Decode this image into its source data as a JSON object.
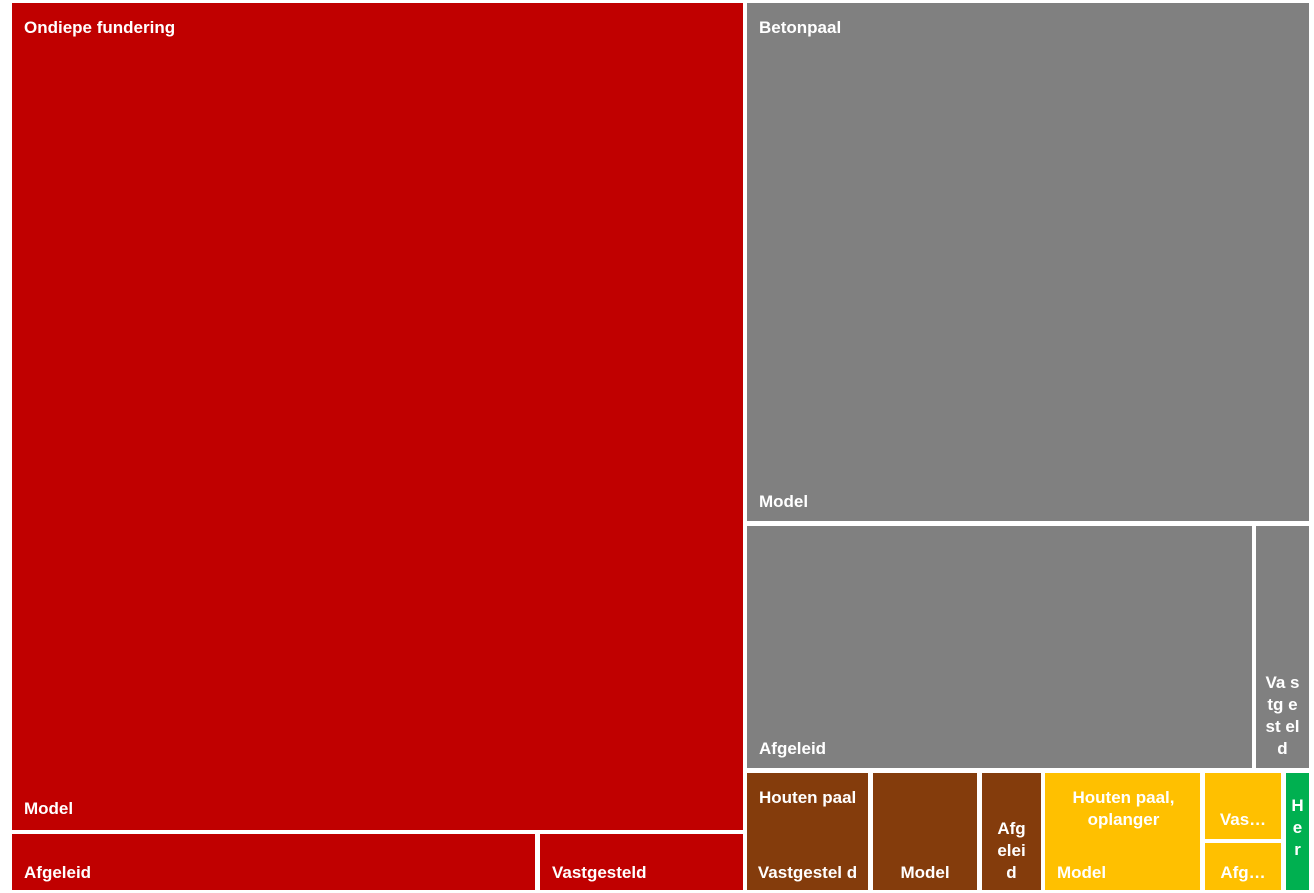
{
  "chart_data": {
    "type": "treemap",
    "colors": {
      "Ondiepe fundering": "#c00000",
      "Betonpaal": "#808080",
      "Houten paal": "#843c0c",
      "Houten paal, oplanger": "#ffc000",
      "Her": "#00b050"
    },
    "groups": [
      {
        "name": "Ondiepe fundering",
        "children": [
          {
            "name": "Model",
            "value": 6285
          },
          {
            "name": "Afgeleid",
            "value": 481
          },
          {
            "name": "Vastgesteld",
            "value": 172
          }
        ]
      },
      {
        "name": "Betonpaal",
        "children": [
          {
            "name": "Model",
            "value": 3124
          },
          {
            "name": "Afgeleid",
            "value": 1470
          },
          {
            "name": "Vastgesteld",
            "value": 160
          }
        ]
      },
      {
        "name": "Houten paal",
        "children": [
          {
            "name": "Vastgesteld",
            "value": 337
          },
          {
            "name": "Model",
            "value": 295
          },
          {
            "name": "Afgeleid",
            "value": 174
          }
        ]
      },
      {
        "name": "Houten paal, oplanger",
        "children": [
          {
            "name": "Model",
            "value": 434
          },
          {
            "name": "Vastgesteld",
            "value": 148
          },
          {
            "name": "Afgeleid",
            "value": 131
          }
        ]
      },
      {
        "name": "Her",
        "children": [
          {
            "name": "",
            "value": 60
          }
        ]
      }
    ]
  },
  "labels": {
    "ondiepe_group": "Ondiepe fundering",
    "ondiepe_model": "Model",
    "ondiepe_afgeleid": "Afgeleid",
    "ondiepe_vastgesteld": "Vastgesteld",
    "beton_group": "Betonpaal",
    "beton_model": "Model",
    "beton_afgeleid": "Afgeleid",
    "beton_vastgesteld": "Va stg est eld",
    "houten_group": "Houten paal",
    "houten_vastgesteld": "Vastgestel d",
    "houten_model": "Model",
    "houten_afgeleid": "Afg elei d",
    "oplanger_group": "Houten paal, oplanger",
    "oplanger_model": "Model",
    "oplanger_vastgesteld": "Vas…",
    "oplanger_afgeleid": "Afg…",
    "her_group": "H e r"
  }
}
